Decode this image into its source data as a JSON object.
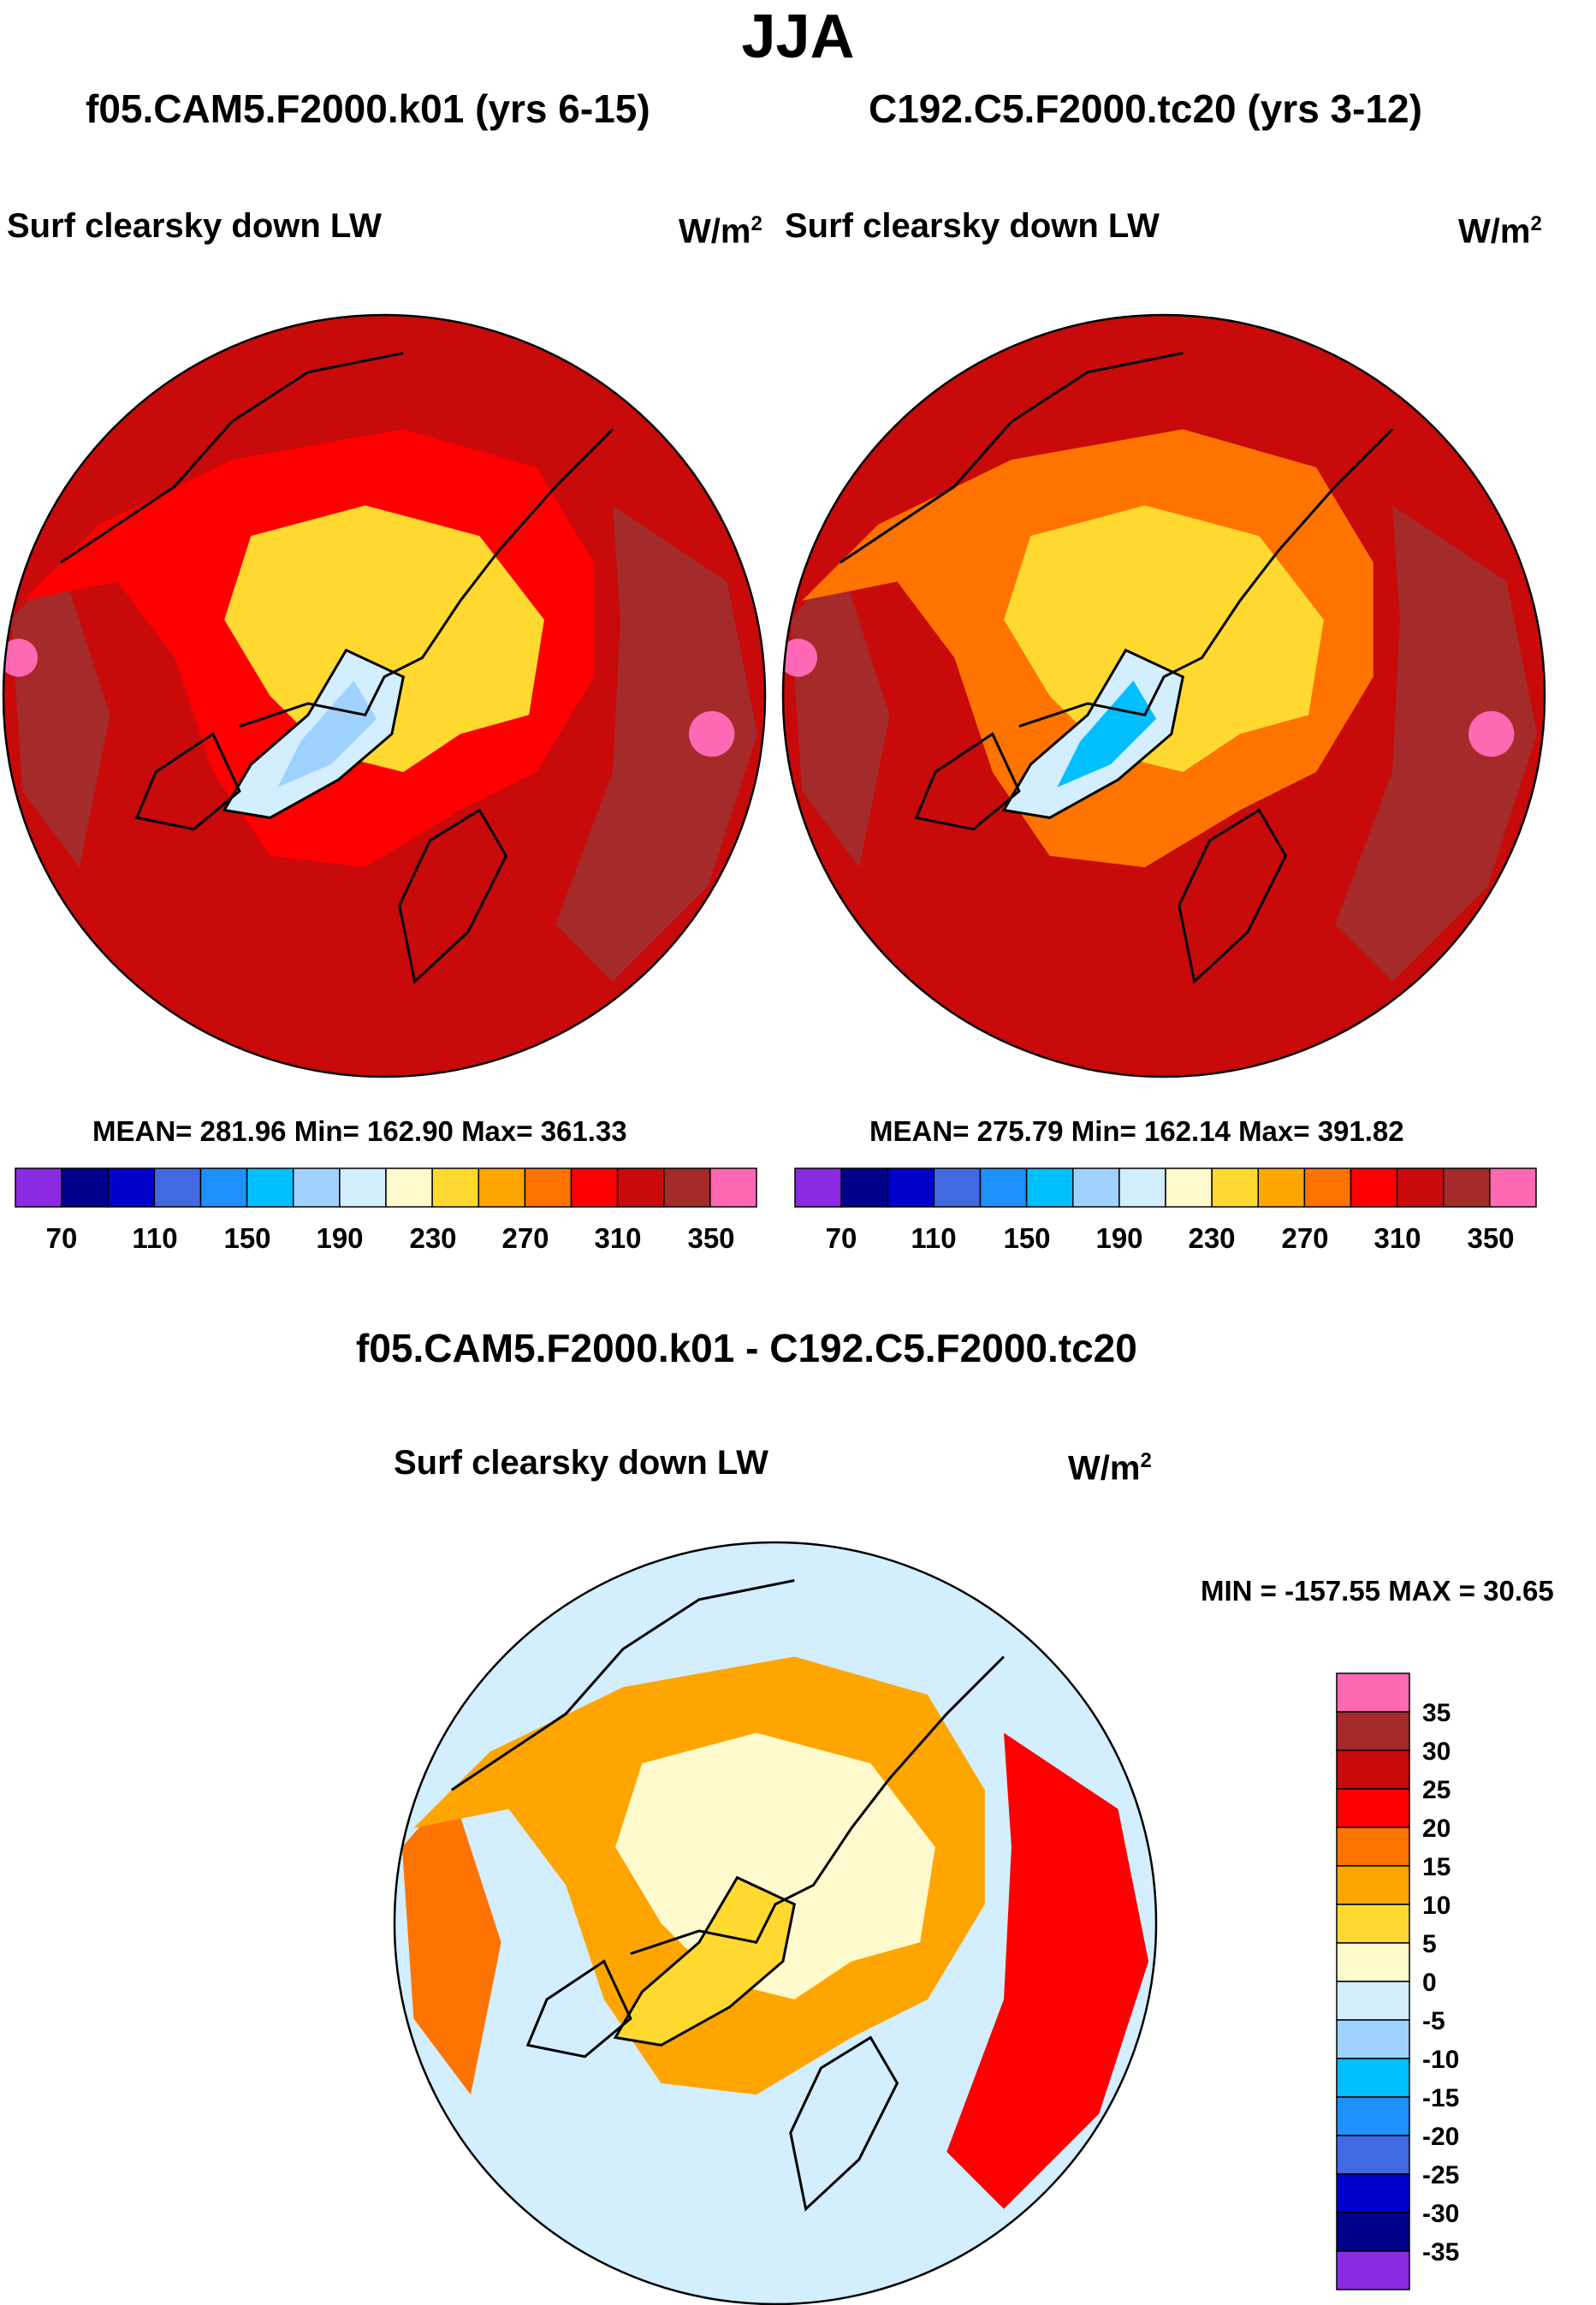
{
  "title": "JJA",
  "chart_data": [
    {
      "type": "polar-stereographic-contour-map",
      "model": "f05.CAM5.F2000.k01 (yrs 6-15)",
      "variable": "Surf clearsky down LW",
      "units_base": "W/m",
      "units_exp": "2",
      "stats": {
        "mean": "281.96",
        "min": "162.90",
        "max": "361.33"
      },
      "stats_text": "MEAN= 281.96  Min= 162.90  Max= 361.33",
      "colorbar_ticks": [
        "70",
        "110",
        "150",
        "190",
        "230",
        "270",
        "310",
        "350"
      ],
      "colorbar_levels": [
        70,
        90,
        110,
        130,
        150,
        170,
        190,
        210,
        230,
        250,
        270,
        290,
        310,
        330,
        350
      ],
      "regions_estimated_value": {
        "arctic_ocean": 240,
        "greenland_interior": 170,
        "greenland_coast": 200,
        "land_midlat": 290,
        "ocean_midlat": 320,
        "north_pacific": 340,
        "tropical_fringe": 355
      }
    },
    {
      "type": "polar-stereographic-contour-map",
      "model": "C192.C5.F2000.tc20 (yrs 3-12)",
      "variable": "Surf clearsky down LW",
      "units_base": "W/m",
      "units_exp": "2",
      "stats": {
        "mean": "275.79",
        "min": "162.14",
        "max": "391.82"
      },
      "stats_text": "MEAN= 275.79  Min= 162.14  Max= 391.82",
      "colorbar_ticks": [
        "70",
        "110",
        "150",
        "190",
        "230",
        "270",
        "310",
        "350"
      ],
      "colorbar_levels": [
        70,
        90,
        110,
        130,
        150,
        170,
        190,
        210,
        230,
        250,
        270,
        290,
        310,
        330,
        350
      ],
      "regions_estimated_value": {
        "arctic_ocean": 240,
        "greenland_interior": 165,
        "greenland_coast": 195,
        "land_midlat": 280,
        "ocean_midlat": 315,
        "north_pacific": 335,
        "tropical_fringe": 350
      }
    },
    {
      "type": "polar-stereographic-contour-map",
      "model": "f05.CAM5.F2000.k01 - C192.C5.F2000.tc20",
      "variable": "Surf clearsky down LW",
      "units_base": "W/m",
      "units_exp": "2",
      "stats": {
        "min": "-157.55",
        "max": "30.65"
      },
      "stats_text": "MIN = -157.55 MAX =  30.65",
      "colorbar_ticks": [
        "35",
        "30",
        "25",
        "20",
        "15",
        "10",
        "5",
        "0",
        "-5",
        "-10",
        "-15",
        "-20",
        "-25",
        "-30",
        "-35"
      ],
      "colorbar_levels": [
        -35,
        -30,
        -25,
        -20,
        -15,
        -10,
        -5,
        0,
        5,
        10,
        15,
        20,
        25,
        30,
        35
      ],
      "regions_estimated_value": {
        "arctic_ocean": 2,
        "north_atlantic": -3,
        "north_america": 18,
        "siberia": 20,
        "europe": 12,
        "greenland": 8
      }
    }
  ],
  "colors": {
    "lw_colorbar": [
      "#8a2be2",
      "#00008b",
      "#0000cd",
      "#4169e1",
      "#1e90ff",
      "#00bfff",
      "#a0d2ff",
      "#d2eeff",
      "#fffacd",
      "#ffd92f",
      "#ffa500",
      "#ff7300",
      "#ff0000",
      "#c80a0a",
      "#a52a2a",
      "#ff69b4"
    ],
    "diff_colorbar": [
      "#ff69b4",
      "#a52a2a",
      "#c80a0a",
      "#ff0000",
      "#ff7300",
      "#ffa500",
      "#ffd92f",
      "#fffacd",
      "#d2eeff",
      "#a0d2ff",
      "#00bfff",
      "#1e90ff",
      "#4169e1",
      "#0000cd",
      "#00008b",
      "#8a2be2"
    ]
  }
}
